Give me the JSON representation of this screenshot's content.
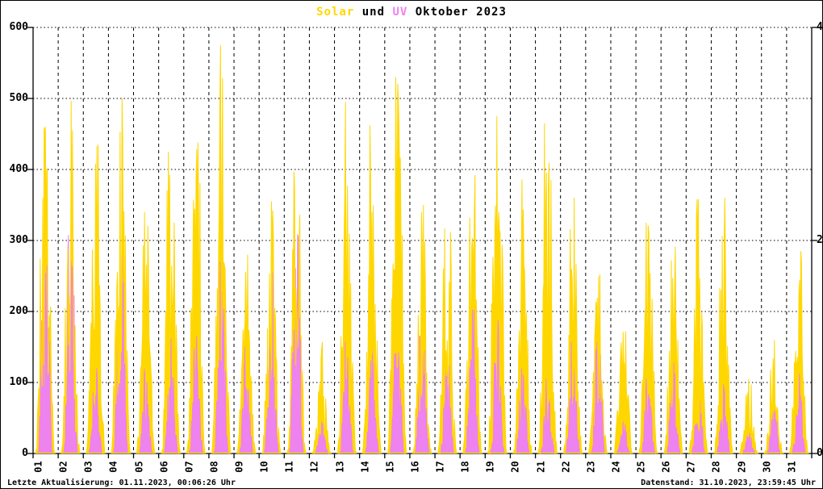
{
  "title": {
    "part_solar": "Solar",
    "part_und": " und ",
    "part_uv": "UV",
    "part_rest": " Oktober 2023",
    "solar_color": "#ffd700",
    "uv_color": "#ee82ee",
    "text_color": "#000000"
  },
  "footer": {
    "left": "Letzte Aktualisierung: 01.11.2023, 00:06:26 Uhr",
    "right": "Datenstand: 31.10.2023, 23:59:45 Uhr"
  },
  "chart_data": {
    "type": "line",
    "title": "Solar und UV Oktober 2023",
    "xlabel": "",
    "ylabel_left": "",
    "ylabel_right": "",
    "grid": "on",
    "legend_position": "none",
    "categories": [
      "01",
      "02",
      "03",
      "04",
      "05",
      "06",
      "07",
      "08",
      "09",
      "10",
      "11",
      "12",
      "13",
      "14",
      "15",
      "16",
      "17",
      "18",
      "19",
      "20",
      "21",
      "22",
      "23",
      "24",
      "25",
      "26",
      "27",
      "28",
      "29",
      "30",
      "31"
    ],
    "left_axis": {
      "range": [
        0,
        600
      ],
      "ticks": [
        0,
        100,
        200,
        300,
        400,
        500,
        600
      ]
    },
    "right_axis": {
      "range": [
        0,
        4
      ],
      "ticks": [
        0,
        2,
        4
      ]
    },
    "series": [
      {
        "name": "Solar",
        "axis": "left",
        "color": "#ffd700",
        "daily_peaks": [
          460,
          497,
          435,
          500,
          340,
          425,
          438,
          575,
          280,
          355,
          397,
          157,
          495,
          462,
          530,
          350,
          317,
          392,
          475,
          386,
          465,
          360,
          252,
          172,
          325,
          291,
          358,
          360,
          105,
          160,
          285
        ]
      },
      {
        "name": "UV",
        "axis": "right",
        "color": "#ee82ee",
        "daily_peaks": [
          2.05,
          2.05,
          0.8,
          2.05,
          0.8,
          1.1,
          1.1,
          1.8,
          1.0,
          1.7,
          2.05,
          0.3,
          1.05,
          1.0,
          0.95,
          1.1,
          0.9,
          1.35,
          1.25,
          0.8,
          0.7,
          1.05,
          1.05,
          0.3,
          0.7,
          0.85,
          0.5,
          0.65,
          0.2,
          0.4,
          0.75
        ]
      }
    ],
    "axis_color": "#000000",
    "gridline_style": {
      "vertical": "dashed",
      "horizontal": "dotted"
    }
  }
}
